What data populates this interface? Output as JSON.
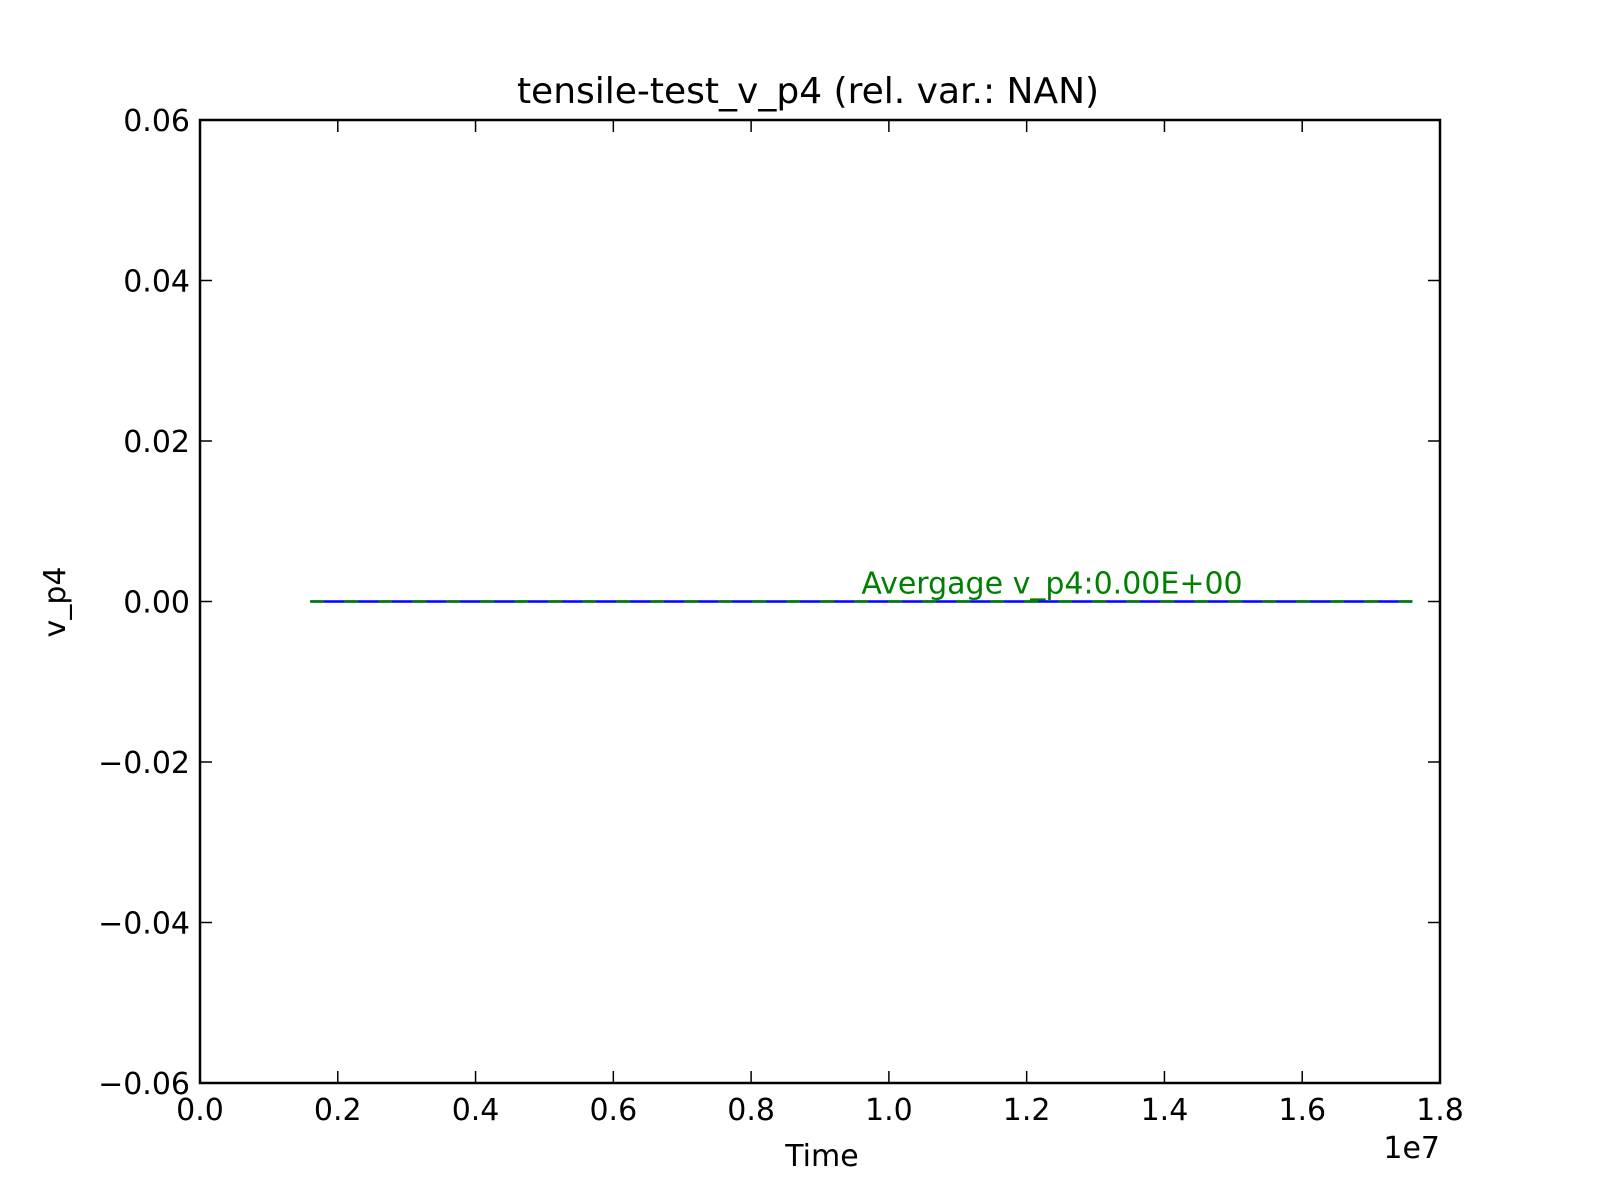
{
  "chart_data": {
    "type": "line",
    "title": "tensile-test_v_p4 (rel. var.: NAN)",
    "xlabel": "Time",
    "ylabel": "v_p4",
    "x_offset_label": "1e7",
    "xlim": [
      0,
      18000000
    ],
    "ylim": [
      -0.06,
      0.06
    ],
    "xticks": [
      0,
      2000000,
      4000000,
      6000000,
      8000000,
      10000000,
      12000000,
      14000000,
      16000000,
      18000000
    ],
    "xtick_labels": [
      "0.0",
      "0.2",
      "0.4",
      "0.6",
      "0.8",
      "1.0",
      "1.2",
      "1.4",
      "1.6",
      "1.8"
    ],
    "yticks": [
      -0.06,
      -0.04,
      -0.02,
      0.0,
      0.02,
      0.04,
      0.06
    ],
    "ytick_labels": [
      "−0.06",
      "−0.04",
      "−0.02",
      "0.00",
      "0.02",
      "0.04",
      "0.06"
    ],
    "grid": false,
    "series": [
      {
        "values": [
          [
            1600000,
            0.0
          ],
          [
            17600000,
            0.0
          ]
        ],
        "color": "#0000ff",
        "style": "solid"
      },
      {
        "values": [
          [
            1600000,
            0.0
          ],
          [
            17600000,
            0.0
          ]
        ],
        "color": "#008000",
        "style": "dashed"
      }
    ],
    "annotation": {
      "text": "Avergage v_p4:0.00E+00",
      "x": 9600000,
      "y": 0.0,
      "color": "#008000"
    }
  }
}
